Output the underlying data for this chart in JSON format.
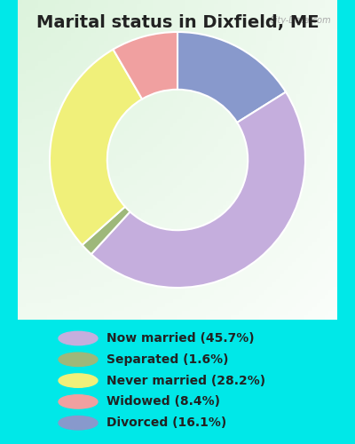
{
  "title": "Marital status in Dixfield, ME",
  "categories": [
    "Now married",
    "Separated",
    "Never married",
    "Widowed",
    "Divorced"
  ],
  "values": [
    45.7,
    1.6,
    28.2,
    8.4,
    16.1
  ],
  "colors": [
    "#c5aedd",
    "#9eb87a",
    "#f0f07a",
    "#f0a0a0",
    "#8899cc"
  ],
  "legend_labels": [
    "Now married (45.7%)",
    "Separated (1.6%)",
    "Never married (28.2%)",
    "Widowed (8.4%)",
    "Divorced (16.1%)"
  ],
  "bg_outer": "#00e8e8",
  "title_fontsize": 14,
  "legend_fontsize": 10,
  "watermark": "City-Data.com",
  "donut_width": 0.45,
  "start_angle": 90,
  "order": [
    4,
    0,
    1,
    2,
    3
  ]
}
